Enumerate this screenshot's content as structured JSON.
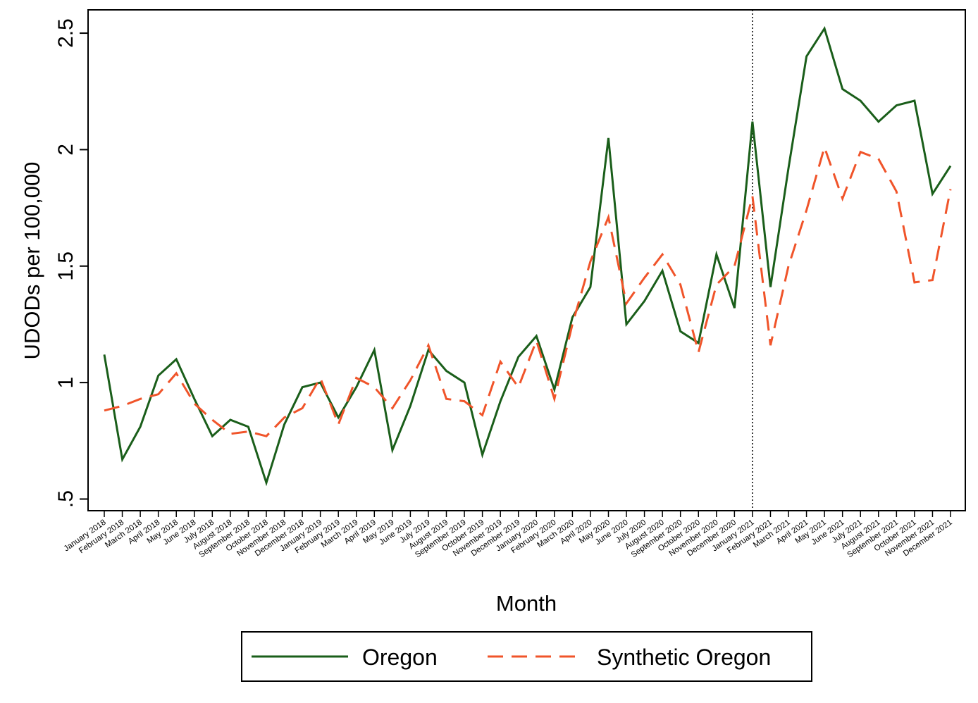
{
  "chart_data": {
    "type": "line",
    "xlabel": "Month",
    "ylabel": "UDODs per 100,000",
    "ylim": [
      0.45,
      2.6
    ],
    "yticks": [
      {
        "value": 0.5,
        "label": ".5"
      },
      {
        "value": 1,
        "label": "1"
      },
      {
        "value": 1.5,
        "label": "1.5"
      },
      {
        "value": 2,
        "label": "2"
      },
      {
        "value": 2.5,
        "label": "2.5"
      }
    ],
    "x": [
      "January 2018",
      "February 2018",
      "March 2018",
      "April 2018",
      "May 2018",
      "June 2018",
      "July 2018",
      "August 2018",
      "September 2018",
      "October 2018",
      "November 2018",
      "December 2018",
      "January 2019",
      "February 2019",
      "March 2019",
      "April 2019",
      "May 2019",
      "June 2019",
      "July 2019",
      "August 2019",
      "September 2019",
      "October 2019",
      "November 2019",
      "December 2019",
      "January 2020",
      "February 2020",
      "March 2020",
      "April 2020",
      "May 2020",
      "June 2020",
      "July 2020",
      "August 2020",
      "September 2020",
      "October 2020",
      "November 2020",
      "December 2020",
      "January 2021",
      "February 2021",
      "March 2021",
      "April 2021",
      "May 2021",
      "June 2021",
      "July 2021",
      "August 2021",
      "September 2021",
      "October 2021",
      "November 2021",
      "December 2021"
    ],
    "treatment_line": {
      "x": "January 2021",
      "style": "dotted"
    },
    "series": [
      {
        "name": "Oregon",
        "color": "#1a5e1a",
        "style": "solid",
        "values": [
          1.12,
          0.67,
          0.81,
          1.03,
          1.1,
          0.93,
          0.77,
          0.84,
          0.81,
          0.57,
          0.82,
          0.98,
          1.0,
          0.85,
          0.98,
          1.14,
          0.71,
          0.9,
          1.14,
          1.05,
          1.0,
          0.69,
          0.92,
          1.11,
          1.2,
          0.97,
          1.28,
          1.41,
          2.05,
          1.25,
          1.35,
          1.48,
          1.22,
          1.17,
          1.55,
          1.32,
          2.12,
          1.41,
          1.92,
          2.4,
          2.52,
          2.26,
          2.21,
          2.12,
          2.19,
          2.21,
          1.81,
          1.93
        ]
      },
      {
        "name": "Synthetic Oregon",
        "color": "#f0542a",
        "style": "dashed",
        "values": [
          0.88,
          0.9,
          0.93,
          0.95,
          1.04,
          0.91,
          0.84,
          0.78,
          0.79,
          0.77,
          0.85,
          0.89,
          1.02,
          0.82,
          1.02,
          0.98,
          0.89,
          1.01,
          1.16,
          0.93,
          0.92,
          0.86,
          1.09,
          0.98,
          1.18,
          0.93,
          1.25,
          1.52,
          1.71,
          1.34,
          1.45,
          1.55,
          1.42,
          1.13,
          1.42,
          1.5,
          1.8,
          1.16,
          1.5,
          1.74,
          2.01,
          1.79,
          1.99,
          1.96,
          1.82,
          1.43,
          1.44,
          1.83
        ]
      }
    ],
    "legend_position": "bottom"
  }
}
